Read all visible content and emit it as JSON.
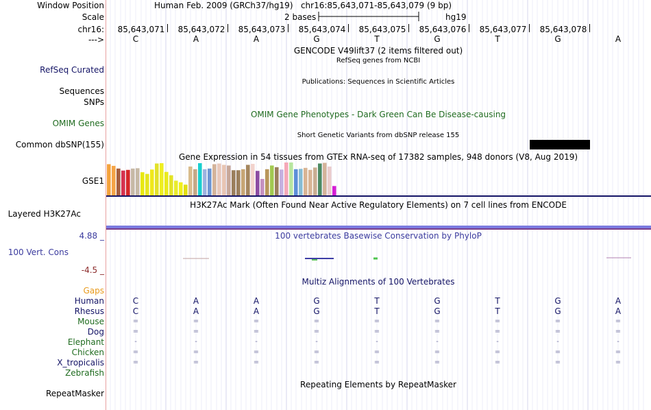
{
  "labels": {
    "window_position": "Window Position",
    "scale": "Scale",
    "chrom": "chr16:",
    "strand": "--->",
    "refseq": "RefSeq Curated",
    "sequences": "Sequences",
    "snps": "SNPs",
    "omim_genes": "OMIM Genes",
    "common_dbsnp": "Common dbSNP(155)",
    "gse1": "GSE1",
    "h3k27ac": "Layered H3K27Ac",
    "vert_max": "4.88 _",
    "vert_cons": "100 Vert. Cons",
    "vert_min": "-4.5 _",
    "gaps": "Gaps",
    "repeatmasker": "RepeatMasker"
  },
  "header": {
    "assembly": "Human Feb. 2009 (GRCh37/hg19)",
    "position": "chr16:85,643,071-85,643,079 (9 bp)",
    "scale_text": "2 bases",
    "scale_db": "hg19"
  },
  "ruler": [
    "85,643,071",
    "85,643,072",
    "85,643,073",
    "85,643,074",
    "85,643,075",
    "85,643,076",
    "85,643,077",
    "85,643,078"
  ],
  "bases": [
    "C",
    "A",
    "A",
    "G",
    "T",
    "G",
    "T",
    "G",
    "A"
  ],
  "tracks": {
    "gencode": "GENCODE V49lift37 (2 items filtered out)",
    "refseq_desc": "RefSeq genes from NCBI",
    "publications": "Publications: Sequences in Scientific Articles",
    "omim_desc": "OMIM Gene Phenotypes - Dark Green Can Be Disease-causing",
    "dbsnp_desc": "Short Genetic Variants from dbSNP release 155",
    "gtex": "Gene Expression in 54 tissues from GTEx RNA-seq of 17382 samples, 948 donors (V8, Aug 2019)",
    "h3k27ac_desc": "H3K27Ac Mark (Often Found Near Active Regulatory Elements) on 7 cell lines from ENCODE",
    "phylop": "100 vertebrates Basewise Conservation by PhyloP",
    "multiz": "Multiz Alignments of 100 Vertebrates",
    "repeatmasker_desc": "Repeating Elements by RepeatMasker"
  },
  "species": [
    {
      "name": "Human",
      "color": "#141466",
      "row": [
        "C",
        "A",
        "A",
        "G",
        "T",
        "G",
        "T",
        "G",
        "A"
      ]
    },
    {
      "name": "Rhesus",
      "color": "#141466",
      "row": [
        "C",
        "A",
        "A",
        "G",
        "T",
        "G",
        "T",
        "G",
        "A"
      ]
    },
    {
      "name": "Mouse",
      "color": "#1f6b1f",
      "row": [
        "=",
        "=",
        "=",
        "=",
        "=",
        "=",
        "=",
        "=",
        "="
      ]
    },
    {
      "name": "Dog",
      "color": "#141466",
      "row": [
        "=",
        "=",
        "=",
        "=",
        "=",
        "=",
        "=",
        "=",
        "="
      ]
    },
    {
      "name": "Elephant",
      "color": "#1f6b1f",
      "row": [
        "-",
        "-",
        "-",
        "-",
        "-",
        "-",
        "-",
        "-",
        "-"
      ]
    },
    {
      "name": "Chicken",
      "color": "#1f6b1f",
      "row": [
        "=",
        "=",
        "=",
        "=",
        "=",
        "=",
        "=",
        "=",
        "="
      ]
    },
    {
      "name": "X_tropicalis",
      "color": "#141466",
      "row": [
        "=",
        "=",
        "=",
        "=",
        "=",
        "=",
        "=",
        "=",
        "="
      ]
    },
    {
      "name": "Zebrafish",
      "color": "#1f6b1f",
      "row": [
        "",
        "",
        "",
        "",
        "",
        "",
        "",
        "",
        ""
      ]
    }
  ],
  "gtex_colors": [
    "#f4a23c",
    "#f5a447",
    "#a65f3f",
    "#d6324f",
    "#d62728",
    "#c7b9a6",
    "#c7b9a6",
    "#e8e80f",
    "#e5e51e",
    "#f0e81b",
    "#e2e12a",
    "#eeee22",
    "#eaea1c",
    "#e3e327",
    "#e9ec2d",
    "#f1ef1c",
    "#e2de12",
    "#d8bc8e",
    "#c4a887",
    "#19cfcf",
    "#9db3e0",
    "#6d95d3",
    "#d4b39a",
    "#e9c9bb",
    "#e8c5b3",
    "#c8a89a",
    "#9b7f5c",
    "#9b7f5c",
    "#c7a675",
    "#a5865e",
    "#f2d3cd",
    "#8c4ca3",
    "#c590c0",
    "#b8965c",
    "#a2c951",
    "#9b7f5c",
    "#c5b0e0",
    "#f5a8b8",
    "#b8e6a0",
    "#5e8fd8",
    "#86bcd4",
    "#d8b494",
    "#d8b494",
    "#c9ae92",
    "#4c8a63",
    "#d4b39a",
    "#ebcccc",
    "#d41ed4"
  ],
  "gtex_values": [
    0.95,
    0.9,
    0.82,
    0.76,
    0.78,
    0.82,
    0.83,
    0.71,
    0.66,
    0.79,
    0.97,
    0.98,
    0.72,
    0.62,
    0.46,
    0.41,
    0.34,
    0.88,
    0.8,
    0.98,
    0.8,
    0.82,
    0.95,
    0.97,
    0.93,
    0.91,
    0.77,
    0.77,
    0.8,
    0.93,
    0.96,
    0.75,
    0.51,
    0.8,
    0.91,
    0.86,
    0.79,
    1.0,
    1.0,
    0.8,
    0.81,
    0.84,
    0.78,
    0.85,
    0.97,
    0.99,
    0.88,
    0.3
  ]
}
